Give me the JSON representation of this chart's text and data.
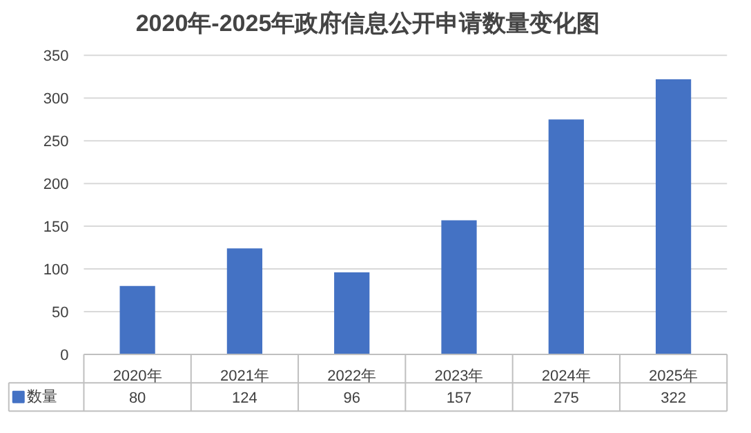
{
  "chart_data": {
    "type": "bar",
    "title": "2020年-2025年政府信息公开申请数量变化图",
    "categories": [
      "2020年",
      "2021年",
      "2022年",
      "2023年",
      "2024年",
      "2025年"
    ],
    "series": [
      {
        "name": "数量",
        "color": "#4472c4",
        "values": [
          80,
          124,
          96,
          157,
          275,
          322
        ]
      }
    ],
    "ylim": [
      0,
      350
    ],
    "yticks": [
      0,
      50,
      100,
      150,
      200,
      250,
      300,
      350
    ],
    "grid": "y",
    "legend": "bottom",
    "data_labels": true
  }
}
